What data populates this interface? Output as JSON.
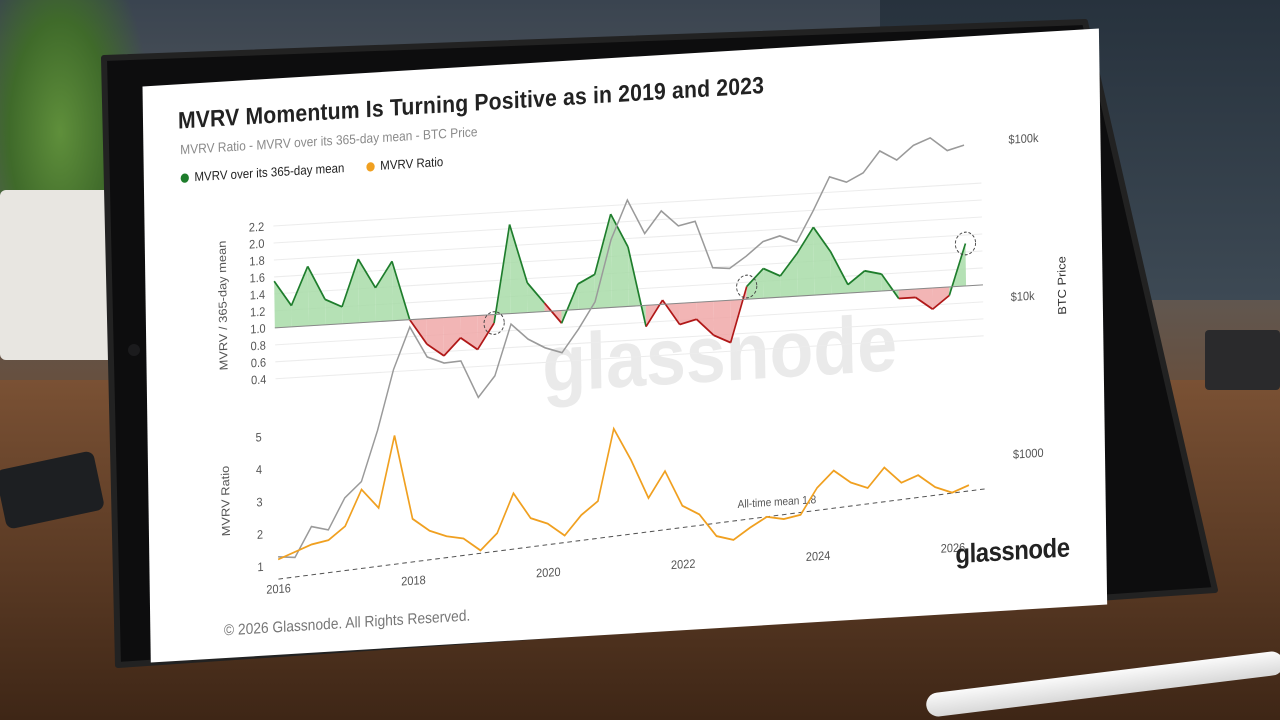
{
  "chart_title": "MVRV Momentum Is Turning Positive as in 2019 and 2023",
  "chart_subtitle": "MVRV Ratio - MVRV over its 365-day mean - BTC Price",
  "legend": [
    {
      "label": "MVRV over its 365-day mean",
      "color": "#1e7d2c"
    },
    {
      "label": "MVRV Ratio",
      "color": "#f0a020"
    }
  ],
  "watermark": "glassnode",
  "footer": "© 2026 Glassnode. All Rights Reserved.",
  "logo": "glassnode",
  "colors": {
    "positive_fill": "#a8dca8",
    "negative_fill": "#f0a8a8",
    "positive_line": "#1e7d2c",
    "negative_line": "#b01818",
    "price_line": "#9a9a9a",
    "mvrv_line": "#f0a020"
  },
  "chart_data": [
    {
      "type": "area",
      "ylabel": "MVRV / 365-day mean",
      "y_ticks": [
        0.4,
        0.6,
        0.8,
        1.0,
        1.2,
        1.4,
        1.6,
        1.8,
        2.0,
        2.2
      ],
      "ylim": [
        0.3,
        2.3
      ],
      "baseline": 1.0,
      "x_ticks": [
        "2016",
        "2018",
        "2020",
        "2022",
        "2024",
        "2026"
      ],
      "xlim": [
        2016,
        2026.5
      ],
      "series": [
        {
          "name": "MVRV over its 365-day mean",
          "x": [
            2016.0,
            2016.25,
            2016.5,
            2016.75,
            2017.0,
            2017.25,
            2017.5,
            2017.75,
            2018.0,
            2018.25,
            2018.5,
            2018.75,
            2019.0,
            2019.25,
            2019.5,
            2019.75,
            2020.0,
            2020.25,
            2020.5,
            2020.75,
            2021.0,
            2021.25,
            2021.5,
            2021.75,
            2022.0,
            2022.25,
            2022.5,
            2022.75,
            2023.0,
            2023.25,
            2023.5,
            2023.75,
            2024.0,
            2024.25,
            2024.5,
            2024.75,
            2025.0,
            2025.25,
            2025.5,
            2025.75,
            2026.0,
            2026.25
          ],
          "values": [
            1.55,
            1.25,
            1.7,
            1.3,
            1.2,
            1.75,
            1.4,
            1.7,
            1.0,
            0.7,
            0.55,
            0.75,
            0.6,
            0.9,
            2.05,
            1.35,
            1.1,
            0.85,
            1.3,
            1.4,
            2.1,
            1.7,
            0.75,
            1.05,
            0.75,
            0.8,
            0.6,
            0.5,
            1.15,
            1.35,
            1.25,
            1.5,
            1.8,
            1.5,
            1.1,
            1.25,
            1.2,
            0.9,
            0.9,
            0.75,
            0.9,
            1.5
          ]
        }
      ]
    },
    {
      "type": "line",
      "ylabel": "MVRV Ratio",
      "y_ticks": [
        1,
        2,
        3,
        4,
        5
      ],
      "ylim": [
        0.8,
        5.4
      ],
      "reference_line": {
        "value": 1.8,
        "label": "All-time mean 1.8"
      },
      "x_ticks": [
        "2016",
        "2018",
        "2020",
        "2022",
        "2024",
        "2026"
      ],
      "series": [
        {
          "name": "MVRV Ratio",
          "x": [
            2016.0,
            2016.25,
            2016.5,
            2016.75,
            2017.0,
            2017.25,
            2017.5,
            2017.75,
            2018.0,
            2018.25,
            2018.5,
            2018.75,
            2019.0,
            2019.25,
            2019.5,
            2019.75,
            2020.0,
            2020.25,
            2020.5,
            2020.75,
            2021.0,
            2021.25,
            2021.5,
            2021.75,
            2022.0,
            2022.25,
            2022.5,
            2022.75,
            2023.0,
            2023.25,
            2023.5,
            2023.75,
            2024.0,
            2024.25,
            2024.5,
            2024.75,
            2025.0,
            2025.25,
            2025.5,
            2025.75,
            2026.0,
            2026.25
          ],
          "values": [
            1.2,
            1.4,
            1.6,
            1.7,
            2.1,
            3.2,
            2.6,
            4.8,
            2.2,
            1.8,
            1.6,
            1.5,
            1.1,
            1.6,
            2.8,
            2.0,
            1.8,
            1.4,
            2.0,
            2.4,
            4.6,
            3.6,
            2.4,
            3.2,
            2.1,
            1.8,
            1.1,
            0.95,
            1.3,
            1.6,
            1.5,
            1.6,
            2.4,
            2.9,
            2.5,
            2.3,
            2.9,
            2.4,
            2.6,
            2.2,
            2.0,
            2.2
          ]
        },
        {
          "name": "BTC Price",
          "x": [
            2016.0,
            2016.25,
            2016.5,
            2016.75,
            2017.0,
            2017.25,
            2017.5,
            2017.75,
            2018.0,
            2018.25,
            2018.5,
            2018.75,
            2019.0,
            2019.25,
            2019.5,
            2019.75,
            2020.0,
            2020.25,
            2020.5,
            2020.75,
            2021.0,
            2021.25,
            2021.5,
            2021.75,
            2022.0,
            2022.25,
            2022.5,
            2022.75,
            2023.0,
            2023.25,
            2023.5,
            2023.75,
            2024.0,
            2024.25,
            2024.5,
            2024.75,
            2025.0,
            2025.25,
            2025.5,
            2025.75,
            2026.0,
            2026.25
          ],
          "values": [
            430,
            420,
            650,
            610,
            960,
            1200,
            2500,
            6000,
            11000,
            7000,
            6300,
            6400,
            3700,
            5000,
            10500,
            8300,
            7200,
            6600,
            9200,
            13500,
            33000,
            58000,
            35000,
            48000,
            38000,
            40000,
            20000,
            19500,
            23000,
            28000,
            30000,
            27000,
            42000,
            68000,
            62000,
            70000,
            95000,
            82000,
            100000,
            110000,
            90000,
            96000
          ]
        }
      ],
      "price_axis_labels": [
        "$100k",
        "$10k",
        "$1000"
      ],
      "price_axis_title": "BTC Price"
    }
  ]
}
